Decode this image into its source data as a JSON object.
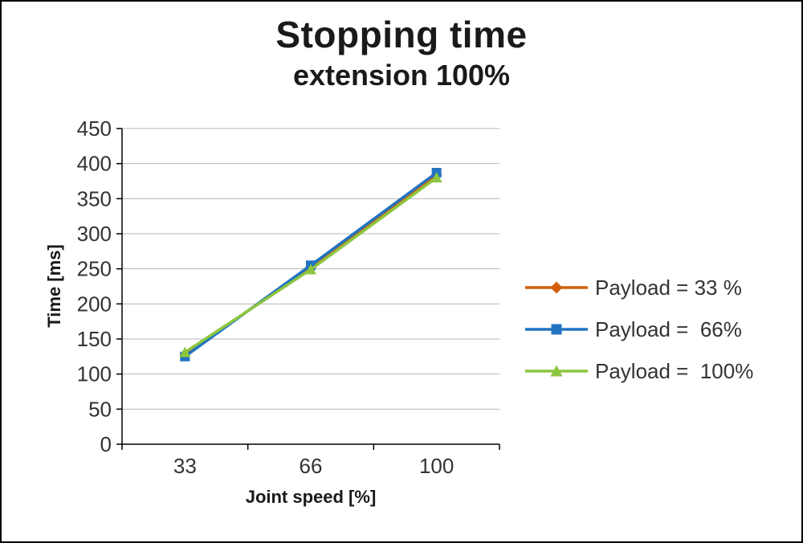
{
  "chart_data": {
    "type": "line",
    "title": "Stopping time",
    "subtitle": "extension 100%",
    "xlabel": "Joint speed [%]",
    "ylabel": "Time [ms]",
    "categories": [
      "33",
      "66",
      "100"
    ],
    "ylim": [
      0,
      450
    ],
    "ytick_step": 50,
    "grid": true,
    "legend_position": "right",
    "series": [
      {
        "name": "Payload = 33 %",
        "marker": "diamond",
        "color": "#d2600a",
        "values": [
          128,
          252,
          384
        ]
      },
      {
        "name": "Payload =  66%",
        "marker": "square",
        "color": "#2173c2",
        "values": [
          125,
          255,
          387
        ]
      },
      {
        "name": "Payload =  100%",
        "marker": "triangle",
        "color": "#8dc63f",
        "values": [
          131,
          249,
          380
        ]
      }
    ]
  },
  "colors": {
    "grid": "#b7b7b7",
    "axis": "#000000",
    "text": "#333333",
    "title": "#1a1a1a",
    "background": "#ffffff",
    "border": "#000000"
  }
}
